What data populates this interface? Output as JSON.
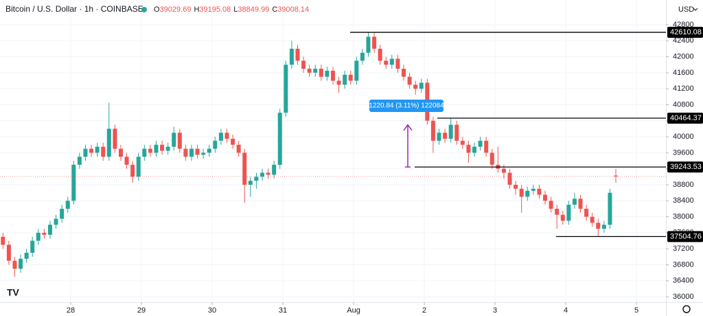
{
  "chart_data": {
    "type": "candlestick",
    "title": "Bitcoin / U.S. Dollar · 1h · COINBASE",
    "currency": "USD",
    "ohlc_labels": [
      "O",
      "H",
      "L",
      "C"
    ],
    "measure_label": "1220.84 (3.11%) 122084",
    "up_color": "#26a69a",
    "down_color": "#ef5350",
    "level_color": "#000000",
    "x": [
      1,
      3,
      5,
      7,
      9,
      11,
      13,
      15,
      17,
      19,
      21,
      23,
      25,
      27,
      29,
      31,
      33,
      35,
      37,
      39,
      41,
      43,
      45,
      47,
      49,
      51,
      53,
      55,
      57,
      59,
      61,
      63,
      65,
      67,
      69,
      71,
      73,
      75,
      77,
      79,
      81,
      83,
      85,
      87,
      89,
      91,
      93,
      95,
      97,
      99,
      101,
      103,
      105,
      107,
      109,
      111,
      113,
      115,
      117,
      119,
      121,
      123,
      125,
      127,
      129,
      131,
      133,
      135,
      137,
      139,
      141,
      143,
      145,
      147,
      149,
      151,
      153,
      155,
      157,
      159,
      161,
      163,
      165,
      167,
      169,
      171,
      173,
      175,
      177,
      179,
      181,
      183,
      185,
      187,
      189,
      191,
      193,
      195,
      197,
      199,
      201,
      203,
      205,
      207,
      209
    ],
    "open": [
      37500,
      37300,
      36900,
      36700,
      36950,
      37100,
      37400,
      37600,
      37550,
      37800,
      37950,
      38200,
      38400,
      39300,
      39500,
      39700,
      39600,
      39750,
      39500,
      40200,
      39700,
      39500,
      39300,
      39000,
      39500,
      39700,
      39600,
      39800,
      39650,
      39750,
      40100,
      39700,
      39500,
      39700,
      39550,
      39600,
      39700,
      39900,
      40100,
      39950,
      39800,
      39600,
      38800,
      38900,
      39000,
      39100,
      39050,
      39300,
      40600,
      41800,
      42200,
      41900,
      41700,
      41600,
      41700,
      41500,
      41650,
      41400,
      41300,
      41550,
      41400,
      41900,
      42100,
      42500,
      42200,
      41900,
      41800,
      41950,
      41700,
      41500,
      41300,
      41200,
      41350,
      40400,
      39900,
      40100,
      39950,
      40300,
      39900,
      39800,
      39600,
      39750,
      39900,
      39600,
      39300,
      39200,
      39100,
      38800,
      38700,
      38500,
      38650,
      38700,
      38550,
      38400,
      38200,
      38050,
      37900,
      38300,
      38450,
      38200,
      38000,
      37850,
      37700,
      37800,
      39029.69
    ],
    "high": [
      37600,
      37400,
      37000,
      37050,
      37200,
      37500,
      37700,
      37700,
      37900,
      38050,
      38300,
      38500,
      39400,
      39600,
      39800,
      39800,
      39850,
      39850,
      40850,
      40300,
      39800,
      39600,
      39400,
      39600,
      39800,
      39800,
      39900,
      39900,
      39850,
      40250,
      40200,
      39800,
      39800,
      39800,
      39700,
      39800,
      40000,
      40200,
      40200,
      40050,
      39900,
      39700,
      39000,
      39100,
      39200,
      39200,
      39400,
      40700,
      41900,
      42400,
      42300,
      42000,
      41800,
      41800,
      41800,
      41750,
      41750,
      41500,
      41650,
      41650,
      42000,
      42200,
      42610.08,
      42600,
      42300,
      42000,
      42050,
      42050,
      41800,
      41600,
      41400,
      41450,
      41450,
      40500,
      40200,
      40200,
      40464.37,
      40400,
      40000,
      39900,
      39850,
      40000,
      40000,
      39700,
      39750,
      39300,
      39200,
      38900,
      38800,
      38750,
      38800,
      38800,
      38650,
      38500,
      38300,
      38150,
      38400,
      38600,
      38550,
      38300,
      38100,
      37950,
      37900,
      38700,
      39195.08
    ],
    "low": [
      37200,
      36800,
      36500,
      36600,
      36850,
      37000,
      37300,
      37450,
      37450,
      37700,
      37850,
      38100,
      38300,
      39200,
      39400,
      39500,
      39500,
      39400,
      39400,
      39600,
      39400,
      39200,
      38850,
      38900,
      39400,
      39500,
      39500,
      39550,
      39550,
      39650,
      39600,
      39400,
      39400,
      39450,
      39450,
      39500,
      39600,
      39800,
      39850,
      39700,
      39500,
      38350,
      38500,
      38700,
      38900,
      38950,
      38950,
      39200,
      40500,
      41700,
      41800,
      41600,
      41500,
      41500,
      41400,
      41400,
      41300,
      41100,
      41200,
      41300,
      41300,
      41800,
      42000,
      42100,
      41800,
      41700,
      41700,
      41600,
      41400,
      41200,
      41050,
      41100,
      40300,
      39600,
      39800,
      39850,
      39850,
      39800,
      39700,
      39350,
      39500,
      39650,
      39500,
      39200,
      39100,
      38950,
      38700,
      38550,
      38100,
      38400,
      38550,
      38450,
      38300,
      38100,
      37700,
      37800,
      37800,
      38200,
      38100,
      37900,
      37750,
      37504.76,
      37600,
      37700,
      38849.99
    ],
    "close": [
      37300,
      36900,
      36700,
      36950,
      37100,
      37400,
      37600,
      37550,
      37800,
      37950,
      38200,
      38400,
      39300,
      39500,
      39700,
      39600,
      39750,
      39500,
      40200,
      39700,
      39500,
      39300,
      39000,
      39500,
      39700,
      39600,
      39800,
      39650,
      39750,
      40100,
      39700,
      39500,
      39700,
      39550,
      39600,
      39700,
      39900,
      40100,
      39950,
      39800,
      39600,
      38800,
      38900,
      39000,
      39100,
      39050,
      39300,
      40600,
      41800,
      42200,
      41900,
      41700,
      41600,
      41700,
      41500,
      41650,
      41400,
      41300,
      41550,
      41400,
      41900,
      42100,
      42500,
      42200,
      41900,
      41800,
      41950,
      41700,
      41500,
      41300,
      41200,
      41350,
      40400,
      39900,
      40100,
      39950,
      40300,
      39900,
      39800,
      39600,
      39750,
      39900,
      39600,
      39300,
      39200,
      39100,
      38800,
      38700,
      38500,
      38650,
      38700,
      38550,
      38400,
      38200,
      38050,
      37900,
      38300,
      38450,
      38200,
      38000,
      37850,
      37700,
      37800,
      38600,
      39008.14
    ],
    "levels": [
      42610.08,
      40464.37,
      39243.53,
      37504.76
    ],
    "xlim": [
      0,
      226
    ],
    "xticks": [
      {
        "value": 24,
        "label": "28"
      },
      {
        "value": 48,
        "label": "29"
      },
      {
        "value": 72,
        "label": "30"
      },
      {
        "value": 96,
        "label": "31"
      },
      {
        "value": 120,
        "label": "Aug"
      },
      {
        "value": 144,
        "label": "2"
      },
      {
        "value": 168,
        "label": "3"
      },
      {
        "value": 192,
        "label": "4"
      },
      {
        "value": 216,
        "label": "5"
      }
    ],
    "ylim": [
      35863,
      43418
    ],
    "yticks": [
      36000,
      36400,
      36800,
      37200,
      37600,
      38000,
      38400,
      38800,
      39200,
      39600,
      40000,
      40400,
      40800,
      41200,
      41600,
      42000,
      42400,
      42800
    ],
    "grid": true
  }
}
